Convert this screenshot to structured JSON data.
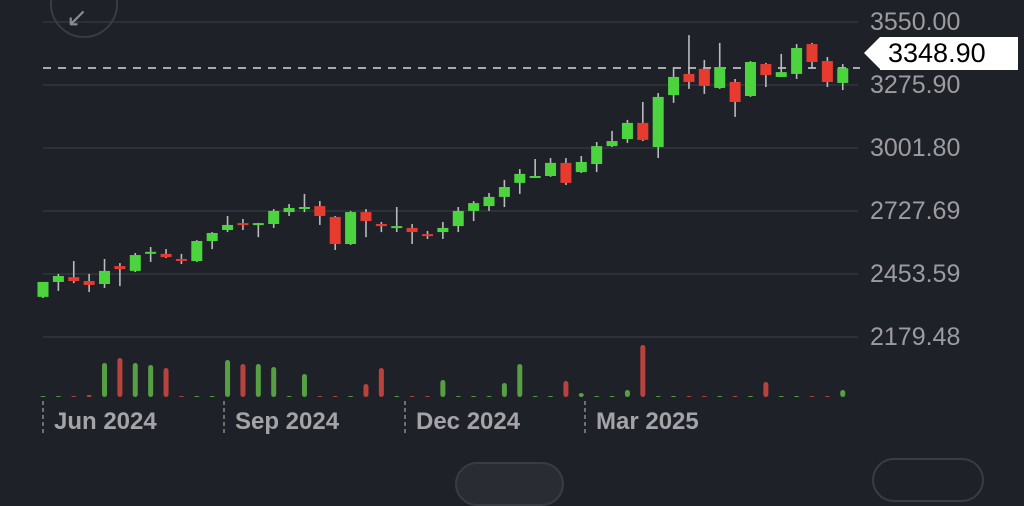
{
  "ui": {
    "collapse_icon": "arrow-down-left-icon",
    "current_price_label": "3348.90"
  },
  "colors": {
    "up": "#4cd43f",
    "down": "#e83b2f",
    "background": "#1f2128",
    "volume_up": "#56a043",
    "volume_down": "#b8433e"
  },
  "chart_data": {
    "type": "candlestick",
    "y_ticks": [
      "3550.00",
      "3275.90",
      "3001.80",
      "2727.69",
      "2453.59",
      "2179.48"
    ],
    "y_tick_values": [
      3550.0,
      3275.9,
      3001.8,
      2727.69,
      2453.59,
      2179.48
    ],
    "x_ticks": [
      "Jun 2024",
      "Sep 2024",
      "Dec 2024",
      "Mar 2025"
    ],
    "x_tick_candle_index": [
      0,
      12,
      24,
      36
    ],
    "ylim": [
      2179.48,
      3550.0
    ],
    "grid": true,
    "current_price": 3348.9,
    "interval": "weekly",
    "open": [
      2354,
      2419,
      2440,
      2423,
      2410,
      2488,
      2467,
      2549,
      2541,
      2519,
      2510,
      2597,
      2645,
      2675,
      2671,
      2671,
      2723,
      2741,
      2749,
      2702,
      2584,
      2723,
      2671,
      2658,
      2654,
      2627,
      2636,
      2662,
      2728,
      2749,
      2789,
      2850,
      2875,
      2880,
      2937,
      2897,
      2932,
      3010,
      3041,
      3111,
      3006,
      3232,
      3324,
      3346,
      3263,
      3289,
      3228,
      3367,
      3311,
      3324,
      3454,
      3380,
      3285
    ],
    "high": [
      2419,
      2454,
      2510,
      2454,
      2519,
      2501,
      2545,
      2571,
      2562,
      2541,
      2601,
      2636,
      2706,
      2693,
      2676,
      2736,
      2758,
      2802,
      2771,
      2706,
      2728,
      2736,
      2680,
      2745,
      2671,
      2641,
      2680,
      2745,
      2771,
      2806,
      2863,
      2910,
      2954,
      2958,
      2958,
      2967,
      3028,
      3076,
      3124,
      3202,
      3241,
      3354,
      3493,
      3385,
      3459,
      3302,
      3380,
      3372,
      3411,
      3454,
      3459,
      3398,
      3367
    ],
    "low": [
      2349,
      2380,
      2414,
      2375,
      2393,
      2401,
      2462,
      2506,
      2523,
      2497,
      2506,
      2562,
      2636,
      2645,
      2614,
      2654,
      2706,
      2723,
      2667,
      2558,
      2580,
      2614,
      2636,
      2636,
      2584,
      2606,
      2606,
      2636,
      2684,
      2728,
      2745,
      2802,
      2871,
      2876,
      2841,
      2893,
      2897,
      3006,
      3024,
      3032,
      2958,
      3198,
      3259,
      3237,
      3259,
      3137,
      3224,
      3267,
      3311,
      3302,
      3346,
      3267,
      3254
    ],
    "close": [
      2419,
      2445,
      2423,
      2406,
      2467,
      2475,
      2536,
      2550,
      2527,
      2514,
      2597,
      2632,
      2667,
      2667,
      2675,
      2728,
      2741,
      2745,
      2706,
      2584,
      2723,
      2684,
      2662,
      2662,
      2636,
      2623,
      2654,
      2728,
      2762,
      2789,
      2832,
      2889,
      2880,
      2937,
      2850,
      2941,
      3010,
      3032,
      3111,
      3037,
      3224,
      3311,
      3289,
      3272,
      3354,
      3202,
      3376,
      3319,
      3332,
      3437,
      3376,
      3289,
      3349
    ],
    "volume_relative": [
      1,
      1,
      1,
      2,
      34,
      39,
      34,
      32,
      29,
      0,
      0,
      0,
      37,
      33,
      33,
      30,
      0,
      23,
      0,
      0,
      0,
      13,
      29,
      0,
      0,
      0,
      17,
      0,
      0,
      0,
      14,
      33,
      0,
      0,
      16,
      4,
      0,
      0,
      7,
      52,
      0,
      0,
      0,
      1,
      0,
      0,
      0,
      15,
      0,
      0,
      0,
      0,
      7
    ]
  }
}
